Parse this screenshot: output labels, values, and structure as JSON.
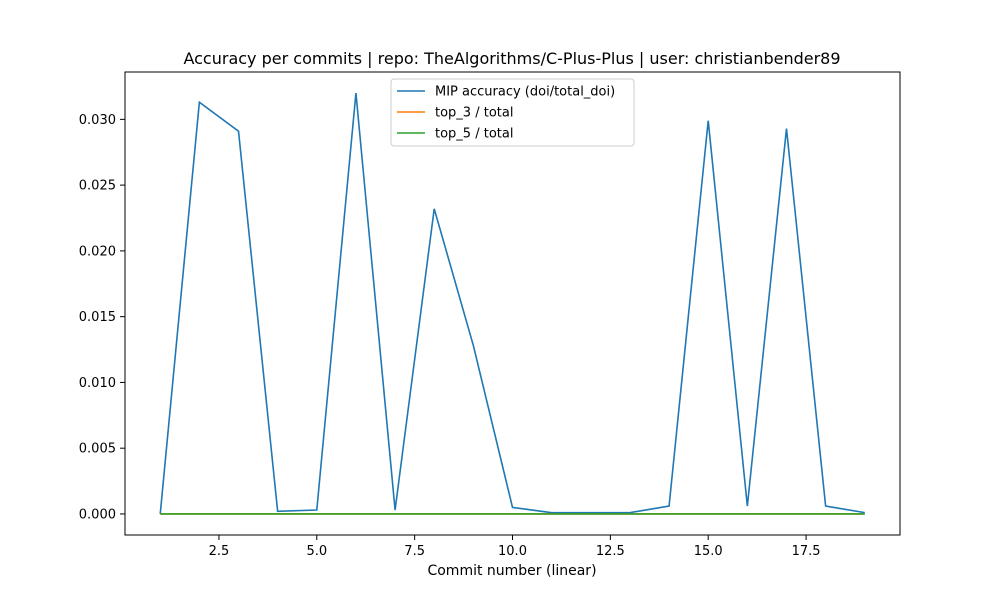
{
  "chart_data": {
    "type": "line",
    "title": "Accuracy per commits | repo: TheAlgorithms/C-Plus-Plus | user: christianbender89",
    "xlabel": "Commit number (linear)",
    "ylabel": "",
    "xlim": [
      0.1,
      19.9
    ],
    "ylim": [
      -0.0016,
      0.0336
    ],
    "xticks": [
      2.5,
      5.0,
      7.5,
      10.0,
      12.5,
      15.0,
      17.5
    ],
    "xtick_labels": [
      "2.5",
      "5.0",
      "7.5",
      "10.0",
      "12.5",
      "15.0",
      "17.5"
    ],
    "yticks": [
      0.0,
      0.005,
      0.01,
      0.015,
      0.02,
      0.025,
      0.03
    ],
    "ytick_labels": [
      "0.000",
      "0.005",
      "0.010",
      "0.015",
      "0.020",
      "0.025",
      "0.030"
    ],
    "grid": false,
    "legend_position": "upper center",
    "x": [
      1,
      2,
      3,
      4,
      5,
      6,
      7,
      8,
      9,
      10,
      11,
      12,
      13,
      14,
      15,
      16,
      17,
      18,
      19
    ],
    "series": [
      {
        "name": "MIP accuracy (doi/total_doi)",
        "color": "#1f77b4",
        "values": [
          0.0,
          0.0313,
          0.0291,
          0.0002,
          0.0003,
          0.032,
          0.0003,
          0.0232,
          0.0128,
          0.0005,
          0.0001,
          0.0001,
          0.0001,
          0.0006,
          0.0299,
          0.0006,
          0.0293,
          0.0006,
          0.0001
        ]
      },
      {
        "name": "top_3 / total",
        "color": "#ff7f0e",
        "values": [
          0,
          0,
          0,
          0,
          0,
          0,
          0,
          0,
          0,
          0,
          0,
          0,
          0,
          0,
          0,
          0,
          0,
          0,
          0
        ]
      },
      {
        "name": "top_5 / total",
        "color": "#2ca02c",
        "values": [
          0,
          0,
          0,
          0,
          0,
          0,
          0,
          0,
          0,
          0,
          0,
          0,
          0,
          0,
          0,
          0,
          0,
          0,
          0
        ]
      }
    ]
  }
}
